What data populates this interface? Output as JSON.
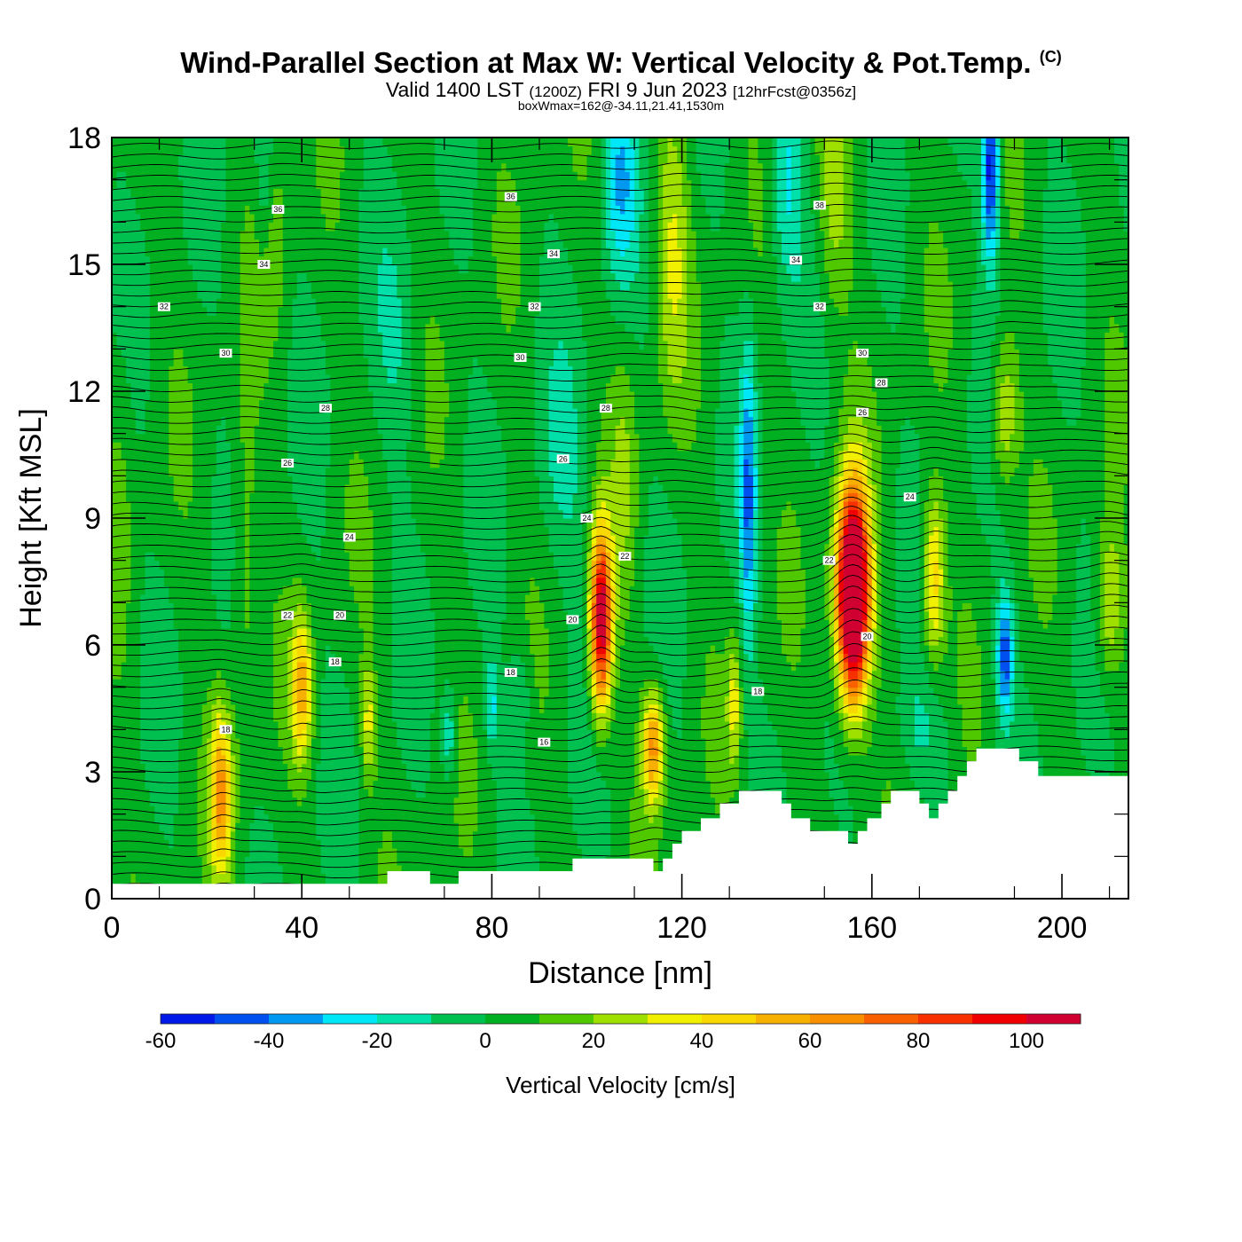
{
  "header": {
    "title": "Wind-Parallel Section at Max W: Vertical Velocity & Pot.Temp.",
    "copyright_mark": "(C)",
    "valid_prefix": "Valid 1400 LST",
    "valid_utc": "(1200Z)",
    "valid_date": "FRI 9 Jun 2023",
    "forecast_info": "[12hrFcst@0356z]",
    "box_info": "boxWmax=162@-34.11,21.41,1530m"
  },
  "chart_data": {
    "type": "heatmap",
    "title": "Wind-Parallel Section at Max W: Vertical Velocity & Pot.Temp.",
    "xlabel": "Distance [nm]",
    "ylabel": "Height [Kft MSL]",
    "xlim": [
      0,
      214
    ],
    "ylim": [
      0,
      18
    ],
    "x_ticks": [
      0,
      40,
      80,
      120,
      160,
      200
    ],
    "x_tick_labels": [
      "0",
      "40",
      "80",
      "120",
      "160",
      "200"
    ],
    "y_ticks": [
      0,
      3,
      6,
      9,
      12,
      15,
      18
    ],
    "y_tick_labels": [
      "0",
      "3",
      "6",
      "9",
      "12",
      "15",
      "18"
    ],
    "background_w": 3,
    "colorbar": {
      "label": "Vertical Velocity [cm/s]",
      "levels": [
        -60,
        -50,
        -40,
        -30,
        -20,
        -10,
        0,
        10,
        20,
        30,
        40,
        50,
        60,
        70,
        80,
        90,
        100,
        110
      ],
      "tick_values": [
        -60,
        -40,
        -20,
        0,
        20,
        40,
        60,
        80,
        100
      ],
      "tick_labels": [
        "-60",
        "-40",
        "-20",
        "0",
        "20",
        "40",
        "60",
        "80",
        "100"
      ],
      "colors": [
        "#0018e8",
        "#0050f0",
        "#0098f0",
        "#00e8f8",
        "#00e0a8",
        "#00c050",
        "#00b020",
        "#50c800",
        "#a0e000",
        "#f0f000",
        "#f8d800",
        "#f8b000",
        "#f89000",
        "#f86000",
        "#f83000",
        "#f00000",
        "#d00030"
      ]
    },
    "terrain_kft": [
      {
        "x": 0,
        "h": 0.35
      },
      {
        "x": 58,
        "h": 0.35
      },
      {
        "x": 58,
        "h": 0.65
      },
      {
        "x": 67,
        "h": 0.65
      },
      {
        "x": 67,
        "h": 0.35
      },
      {
        "x": 73,
        "h": 0.35
      },
      {
        "x": 73,
        "h": 0.65
      },
      {
        "x": 97,
        "h": 0.65
      },
      {
        "x": 97,
        "h": 0.95
      },
      {
        "x": 114,
        "h": 0.95
      },
      {
        "x": 114,
        "h": 0.65
      },
      {
        "x": 116,
        "h": 0.65
      },
      {
        "x": 116,
        "h": 0.95
      },
      {
        "x": 118,
        "h": 0.95
      },
      {
        "x": 118,
        "h": 1.3
      },
      {
        "x": 120,
        "h": 1.3
      },
      {
        "x": 120,
        "h": 1.6
      },
      {
        "x": 124,
        "h": 1.6
      },
      {
        "x": 124,
        "h": 1.9
      },
      {
        "x": 128,
        "h": 1.9
      },
      {
        "x": 128,
        "h": 2.25
      },
      {
        "x": 132,
        "h": 2.25
      },
      {
        "x": 132,
        "h": 2.55
      },
      {
        "x": 141,
        "h": 2.55
      },
      {
        "x": 141,
        "h": 2.25
      },
      {
        "x": 143,
        "h": 2.25
      },
      {
        "x": 143,
        "h": 1.9
      },
      {
        "x": 147,
        "h": 1.9
      },
      {
        "x": 147,
        "h": 1.6
      },
      {
        "x": 155,
        "h": 1.6
      },
      {
        "x": 155,
        "h": 1.3
      },
      {
        "x": 157,
        "h": 1.3
      },
      {
        "x": 157,
        "h": 1.6
      },
      {
        "x": 159,
        "h": 1.6
      },
      {
        "x": 159,
        "h": 1.9
      },
      {
        "x": 162,
        "h": 1.9
      },
      {
        "x": 162,
        "h": 2.25
      },
      {
        "x": 164,
        "h": 2.25
      },
      {
        "x": 164,
        "h": 2.55
      },
      {
        "x": 170,
        "h": 2.55
      },
      {
        "x": 170,
        "h": 2.25
      },
      {
        "x": 172,
        "h": 2.25
      },
      {
        "x": 172,
        "h": 1.9
      },
      {
        "x": 174,
        "h": 1.9
      },
      {
        "x": 174,
        "h": 2.25
      },
      {
        "x": 176,
        "h": 2.25
      },
      {
        "x": 176,
        "h": 2.55
      },
      {
        "x": 178,
        "h": 2.55
      },
      {
        "x": 178,
        "h": 2.9
      },
      {
        "x": 180,
        "h": 2.9
      },
      {
        "x": 180,
        "h": 3.25
      },
      {
        "x": 182,
        "h": 3.25
      },
      {
        "x": 182,
        "h": 3.55
      },
      {
        "x": 191,
        "h": 3.55
      },
      {
        "x": 191,
        "h": 3.25
      },
      {
        "x": 195,
        "h": 3.25
      },
      {
        "x": 195,
        "h": 2.9
      },
      {
        "x": 214,
        "h": 2.9
      }
    ],
    "updrafts": [
      {
        "x": 23,
        "y": 2.5,
        "w": 55,
        "sx": 1.6,
        "sy": 1.4
      },
      {
        "x": 40,
        "y": 5.0,
        "w": 50,
        "sx": 1.5,
        "sy": 1.2
      },
      {
        "x": 54,
        "y": 4.2,
        "w": 30,
        "sx": 1.0,
        "sy": 1.0
      },
      {
        "x": 103,
        "y": 6.6,
        "w": 110,
        "sx": 1.6,
        "sy": 1.5
      },
      {
        "x": 114,
        "y": 3.6,
        "w": 60,
        "sx": 1.6,
        "sy": 0.95
      },
      {
        "x": 131,
        "y": 4.6,
        "w": 30,
        "sx": 1.0,
        "sy": 1.0
      },
      {
        "x": 156,
        "y": 7.2,
        "w": 162,
        "sx": 2.4,
        "sy": 1.75
      },
      {
        "x": 173,
        "y": 7.6,
        "w": 45,
        "sx": 1.6,
        "sy": 1.4
      },
      {
        "x": 188,
        "y": 11.5,
        "w": 30,
        "sx": 2.0,
        "sy": 1.2
      },
      {
        "x": 210,
        "y": 7.0,
        "w": 30,
        "sx": 2.0,
        "sy": 1.3
      },
      {
        "x": 28,
        "y": 8.0,
        "w": 15,
        "sx": 2.0,
        "sy": 3.0
      },
      {
        "x": 108,
        "y": 10.0,
        "w": 15,
        "sx": 2.0,
        "sy": 2.0
      },
      {
        "x": 118,
        "y": 15.5,
        "w": 25,
        "sx": 2.5,
        "sy": 2.5
      },
      {
        "x": 152,
        "y": 16.5,
        "w": 20,
        "sx": 2.5,
        "sy": 2.0
      },
      {
        "x": 35,
        "y": 16.0,
        "w": 10,
        "sx": 2.0,
        "sy": 2.0
      },
      {
        "x": 2,
        "y": 10.0,
        "w": 8,
        "sx": 2.0,
        "sy": 3.0
      }
    ],
    "downdrafts": [
      {
        "x": 107,
        "y": 17.0,
        "w": -30,
        "sx": 2.5,
        "sy": 1.6
      },
      {
        "x": 142,
        "y": 17.0,
        "w": -25,
        "sx": 2.5,
        "sy": 1.8
      },
      {
        "x": 185,
        "y": 17.3,
        "w": -60,
        "sx": 1.3,
        "sy": 1.6
      },
      {
        "x": 134,
        "y": 9.5,
        "w": -40,
        "sx": 1.2,
        "sy": 2.5
      },
      {
        "x": 188,
        "y": 5.8,
        "w": -50,
        "sx": 1.2,
        "sy": 1.0
      },
      {
        "x": 71,
        "y": 3.9,
        "w": -25,
        "sx": 1.0,
        "sy": 0.8
      },
      {
        "x": 80,
        "y": 4.6,
        "w": -25,
        "sx": 1.0,
        "sy": 0.8
      },
      {
        "x": 86,
        "y": 4.8,
        "w": -15,
        "sx": 1.5,
        "sy": 0.8
      },
      {
        "x": 32,
        "y": 17.2,
        "w": -15,
        "sx": 1.2,
        "sy": 1.2
      },
      {
        "x": 95,
        "y": 10.0,
        "w": -12,
        "sx": 4.0,
        "sy": 2.0
      },
      {
        "x": 170,
        "y": 4.0,
        "w": -14,
        "sx": 4.0,
        "sy": 1.0
      },
      {
        "x": 60,
        "y": 13.0,
        "w": -10,
        "sx": 3.0,
        "sy": 2.0
      }
    ],
    "theta_label": "Pot.Temp.",
    "theta_contour_labels": [
      {
        "x": 24,
        "y": 4.0,
        "text": "18"
      },
      {
        "x": 47,
        "y": 5.6,
        "text": "18"
      },
      {
        "x": 84,
        "y": 5.35,
        "text": "18"
      },
      {
        "x": 91,
        "y": 3.7,
        "text": "16"
      },
      {
        "x": 136,
        "y": 4.9,
        "text": "18"
      },
      {
        "x": 37,
        "y": 6.7,
        "text": "22"
      },
      {
        "x": 48,
        "y": 6.7,
        "text": "20"
      },
      {
        "x": 97,
        "y": 6.6,
        "text": "20"
      },
      {
        "x": 108,
        "y": 8.1,
        "text": "22"
      },
      {
        "x": 159,
        "y": 6.2,
        "text": "20"
      },
      {
        "x": 151,
        "y": 8.0,
        "text": "22"
      },
      {
        "x": 50,
        "y": 8.55,
        "text": "24"
      },
      {
        "x": 100,
        "y": 9.0,
        "text": "24"
      },
      {
        "x": 168,
        "y": 9.5,
        "text": "24"
      },
      {
        "x": 37,
        "y": 10.3,
        "text": "26"
      },
      {
        "x": 95,
        "y": 10.4,
        "text": "26"
      },
      {
        "x": 158,
        "y": 11.5,
        "text": "26"
      },
      {
        "x": 45,
        "y": 11.6,
        "text": "28"
      },
      {
        "x": 104,
        "y": 11.6,
        "text": "28"
      },
      {
        "x": 162,
        "y": 12.2,
        "text": "28"
      },
      {
        "x": 24,
        "y": 12.9,
        "text": "30"
      },
      {
        "x": 86,
        "y": 12.8,
        "text": "30"
      },
      {
        "x": 158,
        "y": 12.9,
        "text": "30"
      },
      {
        "x": 11,
        "y": 14.0,
        "text": "32"
      },
      {
        "x": 89,
        "y": 14.0,
        "text": "32"
      },
      {
        "x": 149,
        "y": 14.0,
        "text": "32"
      },
      {
        "x": 32,
        "y": 15.0,
        "text": "34"
      },
      {
        "x": 93,
        "y": 15.25,
        "text": "34"
      },
      {
        "x": 144,
        "y": 15.1,
        "text": "34"
      },
      {
        "x": 35,
        "y": 16.3,
        "text": "36"
      },
      {
        "x": 84,
        "y": 16.6,
        "text": "36"
      },
      {
        "x": 149,
        "y": 16.4,
        "text": "38"
      }
    ]
  }
}
